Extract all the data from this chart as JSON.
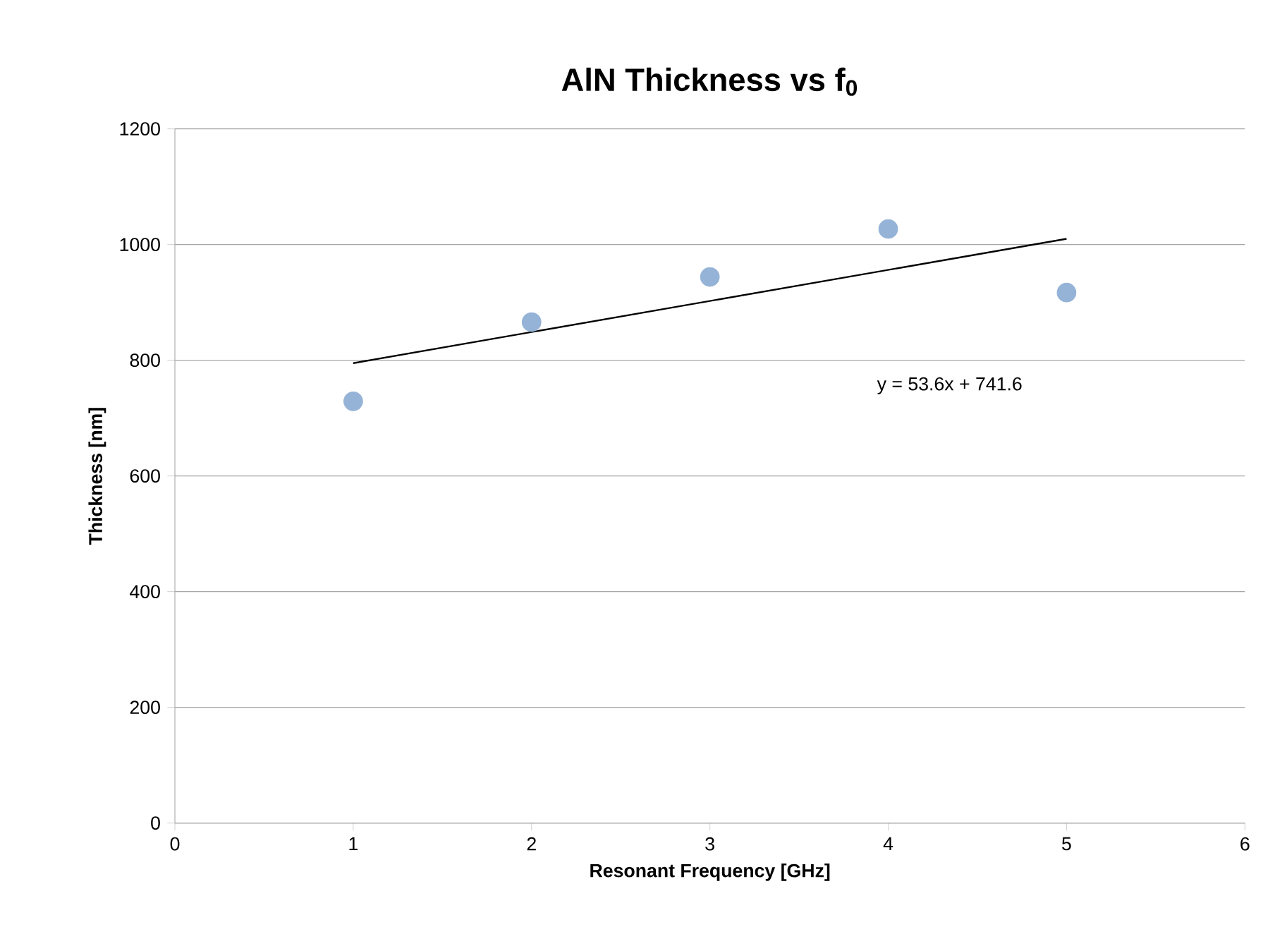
{
  "chart_data": {
    "type": "scatter",
    "title": "AlN Thickness vs f$_{0}$",
    "xlabel": "Resonant Frequency [GHz]",
    "ylabel": "Thickness [nm]",
    "series": [
      {
        "color": "#95b3d7",
        "x": [
          1,
          2,
          3,
          4,
          5
        ],
        "values": [
          729,
          866,
          944,
          1027,
          917
        ],
        "marker": "circle"
      },
      {
        "type": "line",
        "color": "#000000",
        "x": [
          1,
          5
        ],
        "values": [
          795,
          1010
        ],
        "marker": "none"
      }
    ],
    "annotations": [
      "y = 53.6x + 741.6"
    ],
    "xlim": [
      0,
      6
    ],
    "xticks": [
      0,
      1,
      2,
      3,
      4,
      5,
      6
    ],
    "ylim": [
      0,
      1200
    ],
    "yticks": [
      0,
      200,
      400,
      600,
      800,
      1000,
      1200
    ],
    "grid": "y"
  }
}
